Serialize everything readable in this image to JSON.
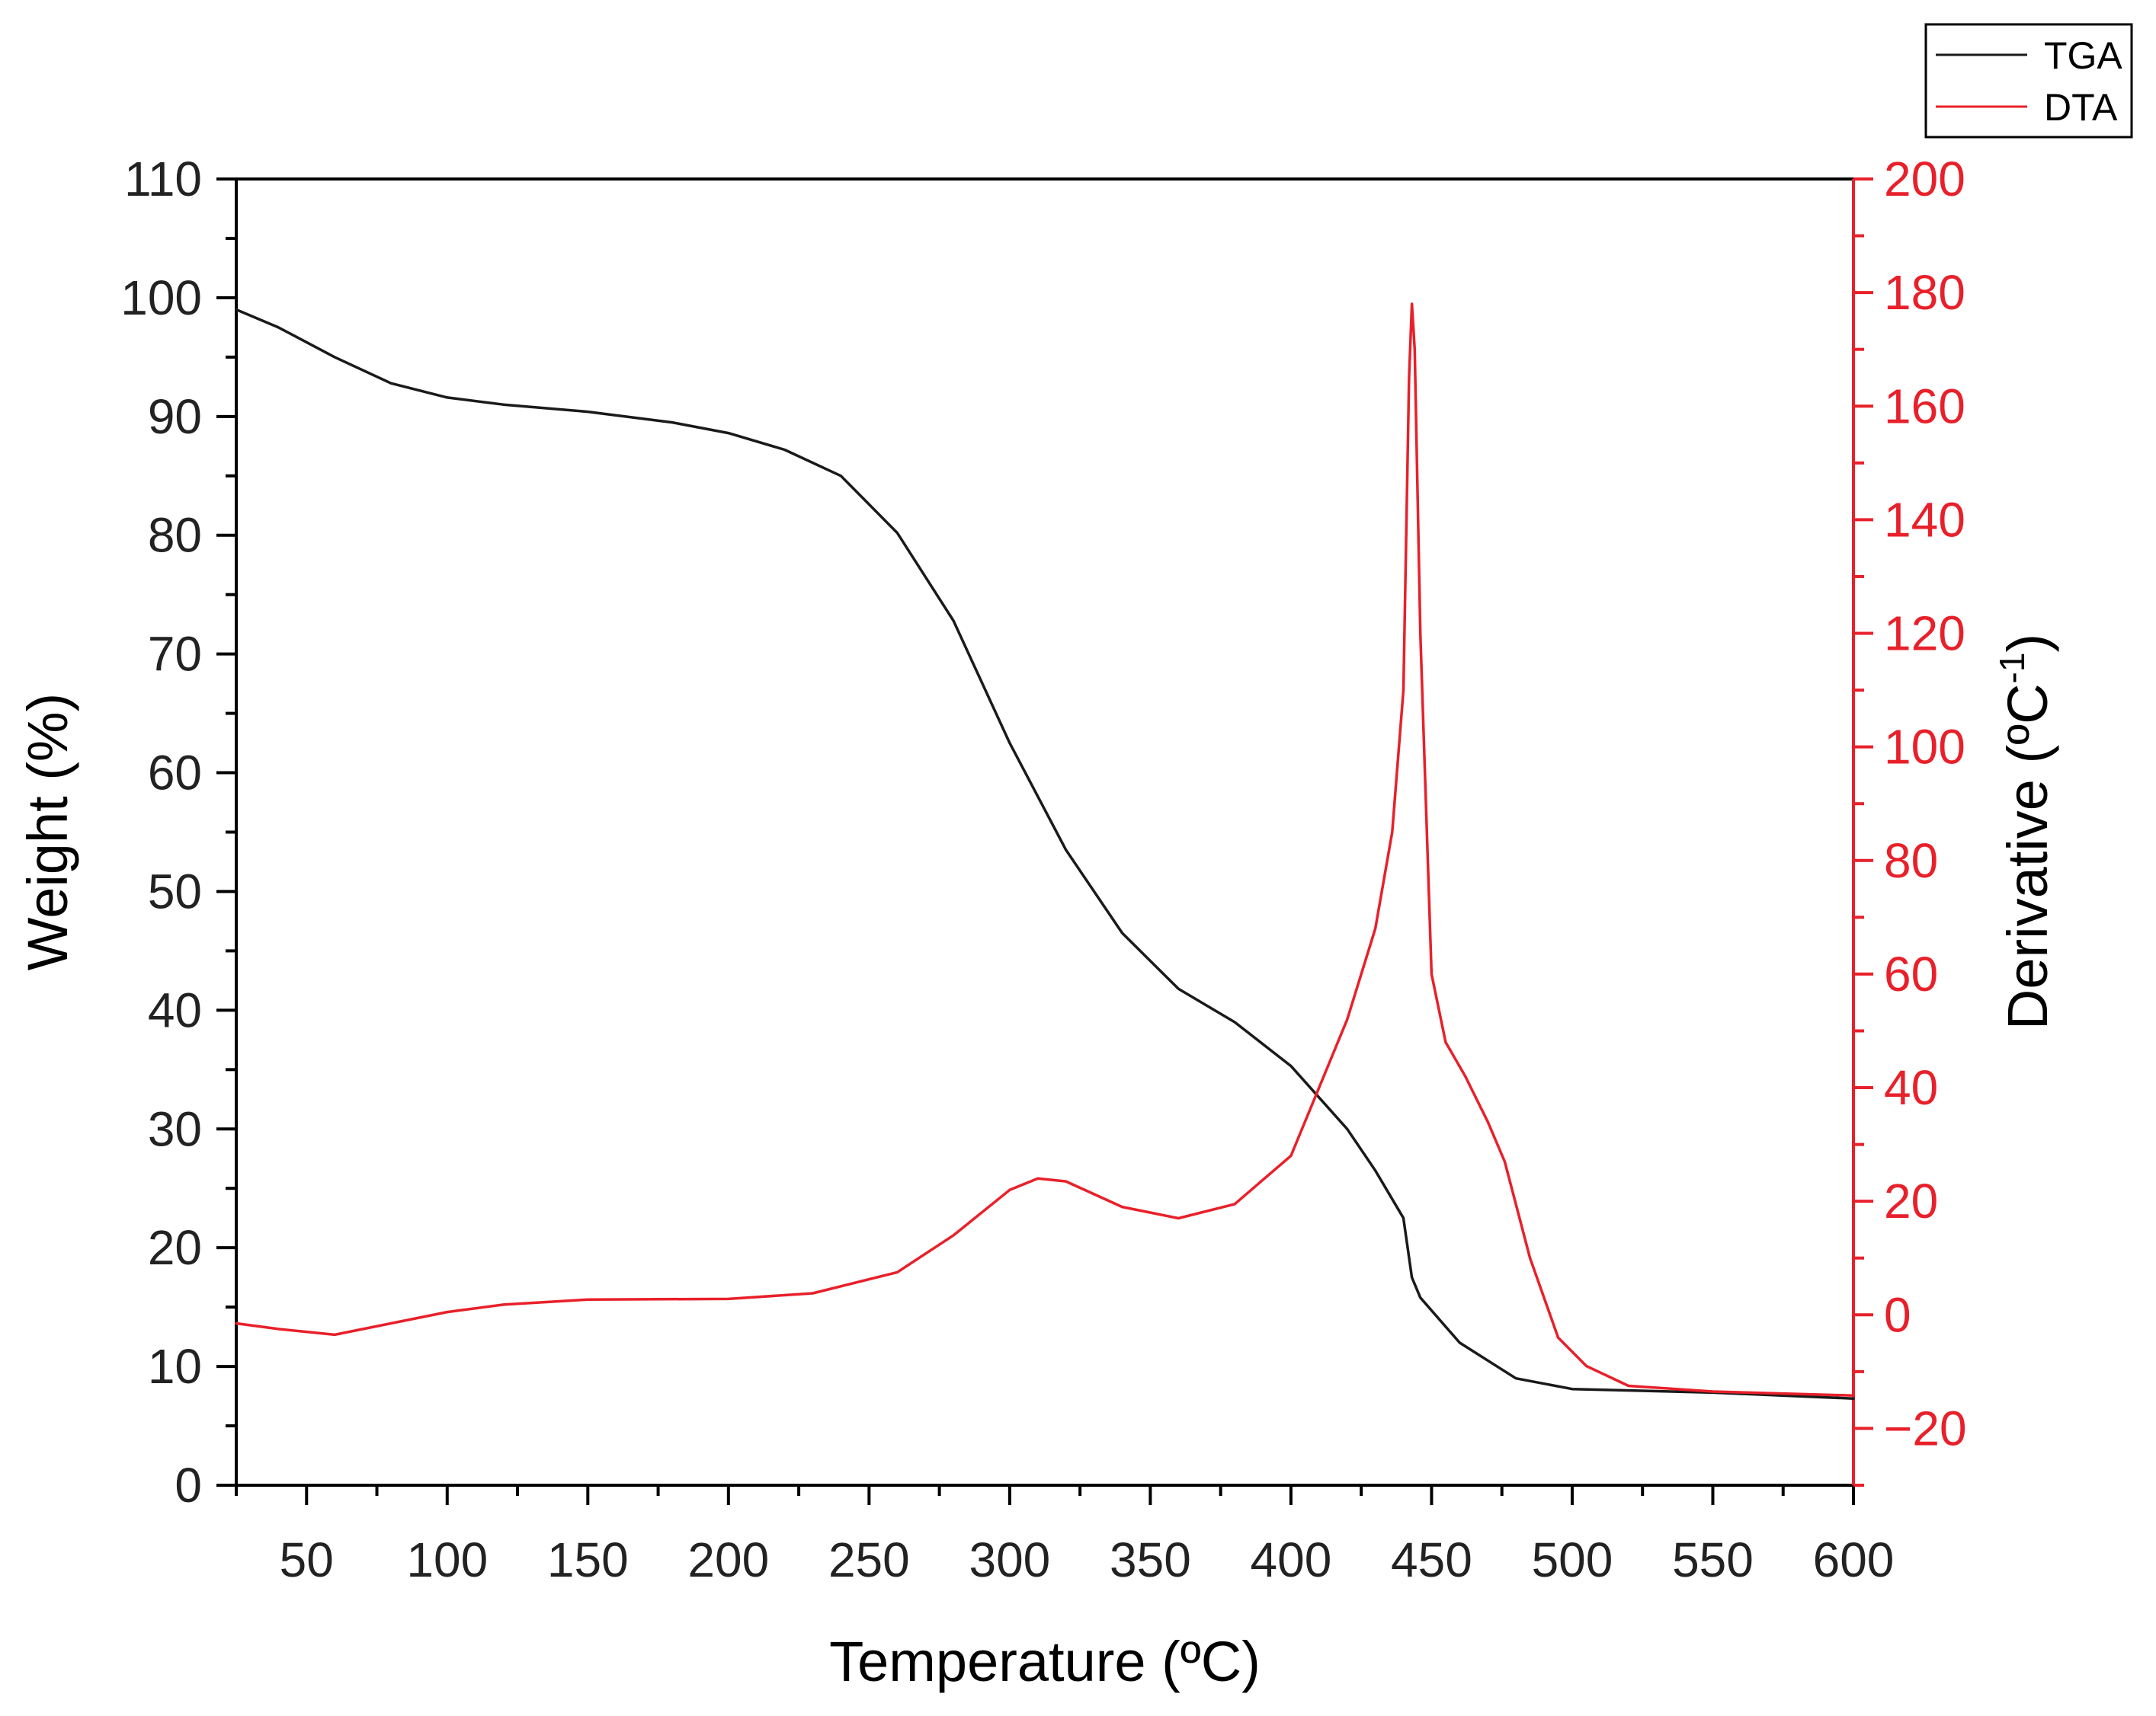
{
  "chart_data": {
    "type": "line",
    "title": "",
    "xlabel": "Temperature (ºC)",
    "xlim": [
      25,
      600
    ],
    "x_ticks": [
      50,
      100,
      150,
      200,
      250,
      300,
      350,
      400,
      450,
      500,
      550,
      600
    ],
    "y_left": {
      "label": "Weight (%)",
      "lim": [
        0,
        110
      ],
      "ticks": [
        0,
        10,
        20,
        30,
        40,
        50,
        60,
        70,
        80,
        90,
        100,
        110
      ]
    },
    "y_right": {
      "label_main": "Derivative (ºC",
      "label_sup": "-1",
      "label_close": ")",
      "lim": [
        -30,
        200
      ],
      "ticks": [
        -20,
        0,
        20,
        40,
        60,
        80,
        100,
        120,
        140,
        160,
        180,
        200
      ]
    },
    "grid": false,
    "legend_position": "top-right",
    "series": [
      {
        "name": "TGA",
        "axis": "left",
        "color": "#1a1a1a",
        "x": [
          25,
          40,
          60,
          80,
          100,
          120,
          150,
          180,
          200,
          220,
          240,
          260,
          280,
          300,
          320,
          340,
          360,
          380,
          400,
          420,
          430,
          440,
          443,
          446,
          460,
          480,
          500,
          550,
          600
        ],
        "y": [
          99,
          97.5,
          95,
          92.8,
          91.6,
          91,
          90.4,
          89.5,
          88.6,
          87.2,
          85,
          80.2,
          72.8,
          62.5,
          53.5,
          46.5,
          41.8,
          39,
          35.3,
          30,
          26.5,
          22.5,
          17.5,
          15.8,
          12,
          9,
          8.1,
          7.8,
          7.3
        ]
      },
      {
        "name": "DTA",
        "axis": "right",
        "color": "#e8202a",
        "x": [
          25,
          40,
          60,
          80,
          100,
          120,
          150,
          200,
          230,
          260,
          280,
          300,
          310,
          320,
          340,
          360,
          380,
          400,
          420,
          430,
          436,
          440,
          442,
          443,
          444,
          446,
          450,
          455,
          462,
          470,
          476,
          485,
          495,
          505,
          520,
          550,
          600
        ],
        "y": [
          -1.5,
          -2.5,
          -3.5,
          -1.5,
          0.5,
          1.8,
          2.7,
          2.8,
          3.8,
          7.5,
          14,
          22,
          24,
          23.5,
          19,
          17,
          19.5,
          28,
          52,
          68,
          85,
          110,
          165,
          178,
          170,
          120,
          60,
          48,
          42,
          34,
          27,
          10,
          -4,
          -9,
          -12.5,
          -13.5,
          -14.2
        ]
      }
    ]
  }
}
